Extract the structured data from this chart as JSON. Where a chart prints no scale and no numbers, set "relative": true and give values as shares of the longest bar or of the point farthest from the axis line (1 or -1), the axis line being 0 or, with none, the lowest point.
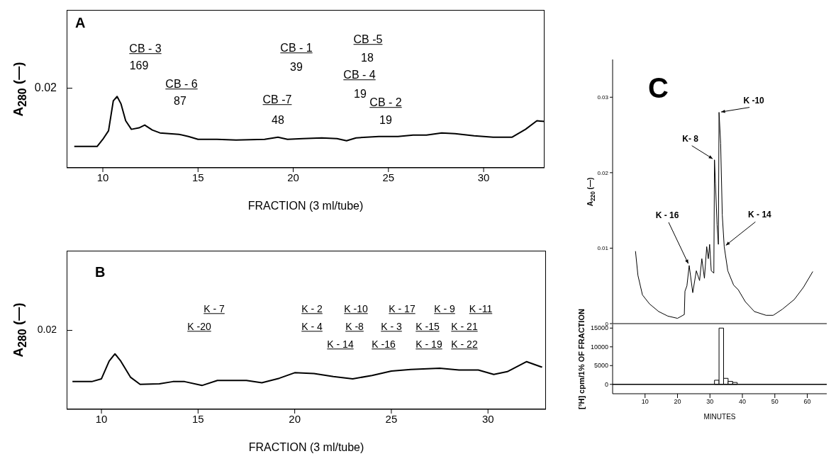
{
  "chart_data": [
    {
      "type": "line",
      "title": "A",
      "xlabel": "FRACTION  (3 ml/tube)",
      "ylabel": "A$_{280}$ (—)",
      "relative": true,
      "color": "#000000",
      "xlim": [
        8.1,
        33.2
      ],
      "xticks": [
        10,
        15,
        20,
        25,
        30
      ],
      "x": [
        8.5,
        9.7,
        10.0,
        10.3,
        10.55,
        10.75,
        10.95,
        11.2,
        11.5,
        11.9,
        12.2,
        12.6,
        13.0,
        14.0,
        14.5,
        15.0,
        16,
        17,
        18.5,
        19.2,
        19.7,
        20.5,
        21.5,
        22.3,
        22.8,
        23.3,
        24.5,
        25.5,
        26.3,
        27,
        27.8,
        28.5,
        29.5,
        30.5,
        31.5,
        32.2,
        32.8,
        33.2
      ],
      "values": [
        0.3,
        0.3,
        0.4,
        0.52,
        0.94,
        1.0,
        0.9,
        0.66,
        0.54,
        0.56,
        0.6,
        0.53,
        0.49,
        0.47,
        0.44,
        0.4,
        0.4,
        0.39,
        0.4,
        0.43,
        0.4,
        0.41,
        0.42,
        0.41,
        0.38,
        0.42,
        0.44,
        0.44,
        0.46,
        0.46,
        0.49,
        0.48,
        0.45,
        0.43,
        0.43,
        0.54,
        0.66,
        0.65
      ],
      "annotations": [
        "0.02",
        "CB - 3",
        "169",
        "CB - 6",
        "87",
        "CB -7",
        "48",
        "CB - 1",
        "39",
        "CB -5",
        "18",
        "CB - 4",
        "19",
        "CB - 2",
        "19"
      ]
    },
    {
      "type": "line",
      "title": "B",
      "xlabel": "FRACTION  (3 ml/tube)",
      "ylabel": "A$_{280}$ (—)",
      "relative": true,
      "color": "#000000",
      "xlim": [
        8.2,
        33.0
      ],
      "xticks": [
        10,
        15,
        20,
        25,
        30
      ],
      "x": [
        8.5,
        9.5,
        10,
        10.4,
        10.7,
        11.0,
        11.5,
        12,
        13,
        13.7,
        14.3,
        15.2,
        16,
        17.5,
        18.3,
        19.2,
        20,
        21,
        22,
        23,
        24,
        25,
        26,
        27.5,
        28.5,
        29.5,
        30.3,
        31,
        32,
        32.8
      ],
      "values": [
        0.5,
        0.5,
        0.55,
        0.87,
        1.0,
        0.87,
        0.58,
        0.45,
        0.46,
        0.5,
        0.5,
        0.43,
        0.52,
        0.52,
        0.48,
        0.56,
        0.66,
        0.645,
        0.59,
        0.55,
        0.61,
        0.69,
        0.72,
        0.74,
        0.71,
        0.71,
        0.63,
        0.68,
        0.86,
        0.76
      ],
      "annotations": [
        "0.02",
        "K - 7",
        "K -20",
        "K - 2",
        "K -10",
        "K - 17",
        "K - 9",
        "K -11",
        "K - 4",
        "K -8",
        "K - 3",
        "K -15",
        "K - 21",
        "K - 14",
        "K -16",
        "K - 19",
        "K - 22"
      ]
    },
    {
      "type": "line",
      "title": "C",
      "ylabel": "A$_{220}$ (—)",
      "color": "#000000",
      "xlim": [
        0,
        66
      ],
      "ylim": [
        0,
        0.035
      ],
      "yticks": [
        0,
        0.01,
        0.02,
        0.03
      ],
      "tick_labels": "y",
      "x": [
        7.05,
        7.8,
        9.2,
        11.4,
        14.2,
        17,
        20,
        22.1,
        22.3,
        22.9,
        23.6,
        24.7,
        25.8,
        26.8,
        27.5,
        28.3,
        29,
        29.5,
        29.9,
        30.4,
        31.2,
        31.4,
        31.7,
        32.2,
        32.6,
        32.8,
        33.3,
        33.8,
        34.4,
        35.5,
        37.3,
        38.7,
        40.9,
        43.7,
        47.3,
        49.5,
        52.3,
        56,
        58.8,
        61.7
      ],
      "values": [
        0.0096,
        0.0064,
        0.0038,
        0.0026,
        0.0016,
        0.001,
        0.0007,
        0.0012,
        0.0043,
        0.005,
        0.0077,
        0.0041,
        0.007,
        0.0057,
        0.0086,
        0.006,
        0.0102,
        0.0086,
        0.0105,
        0.007,
        0.0067,
        0.0217,
        0.0185,
        0.0131,
        0.0105,
        0.028,
        0.0239,
        0.0144,
        0.0102,
        0.007,
        0.0051,
        0.0045,
        0.0029,
        0.0016,
        0.0011,
        0.0011,
        0.0019,
        0.0032,
        0.0048,
        0.0069
      ],
      "annotations": [
        {
          "text": "K - 16",
          "x": 23.6,
          "y": 0.0077
        },
        {
          "text": "K- 8",
          "x": 31.4,
          "y": 0.0217
        },
        {
          "text": "K -10",
          "x": 32.8,
          "y": 0.028
        },
        {
          "text": "K - 14",
          "x": 34.4,
          "y": 0.0102
        }
      ]
    },
    {
      "type": "histogram",
      "xlabel": "MINUTES",
      "ylabel": "[³H] cpm/1% OF FRACTION",
      "color": "#ffffff",
      "xlim": [
        0,
        66
      ],
      "xticks": [
        10,
        20,
        30,
        40,
        50,
        60
      ],
      "ylim": [
        -2500,
        16000
      ],
      "yticks": [
        0,
        5000,
        10000,
        15000
      ],
      "bins": [
        30,
        31.4,
        32.8,
        34.2,
        35.6,
        37,
        38.4
      ],
      "values": [
        null,
        1100,
        15000,
        1600,
        800,
        500
      ],
      "ref_lines": [
        {
          "axis": "y",
          "value": 0
        }
      ]
    }
  ]
}
